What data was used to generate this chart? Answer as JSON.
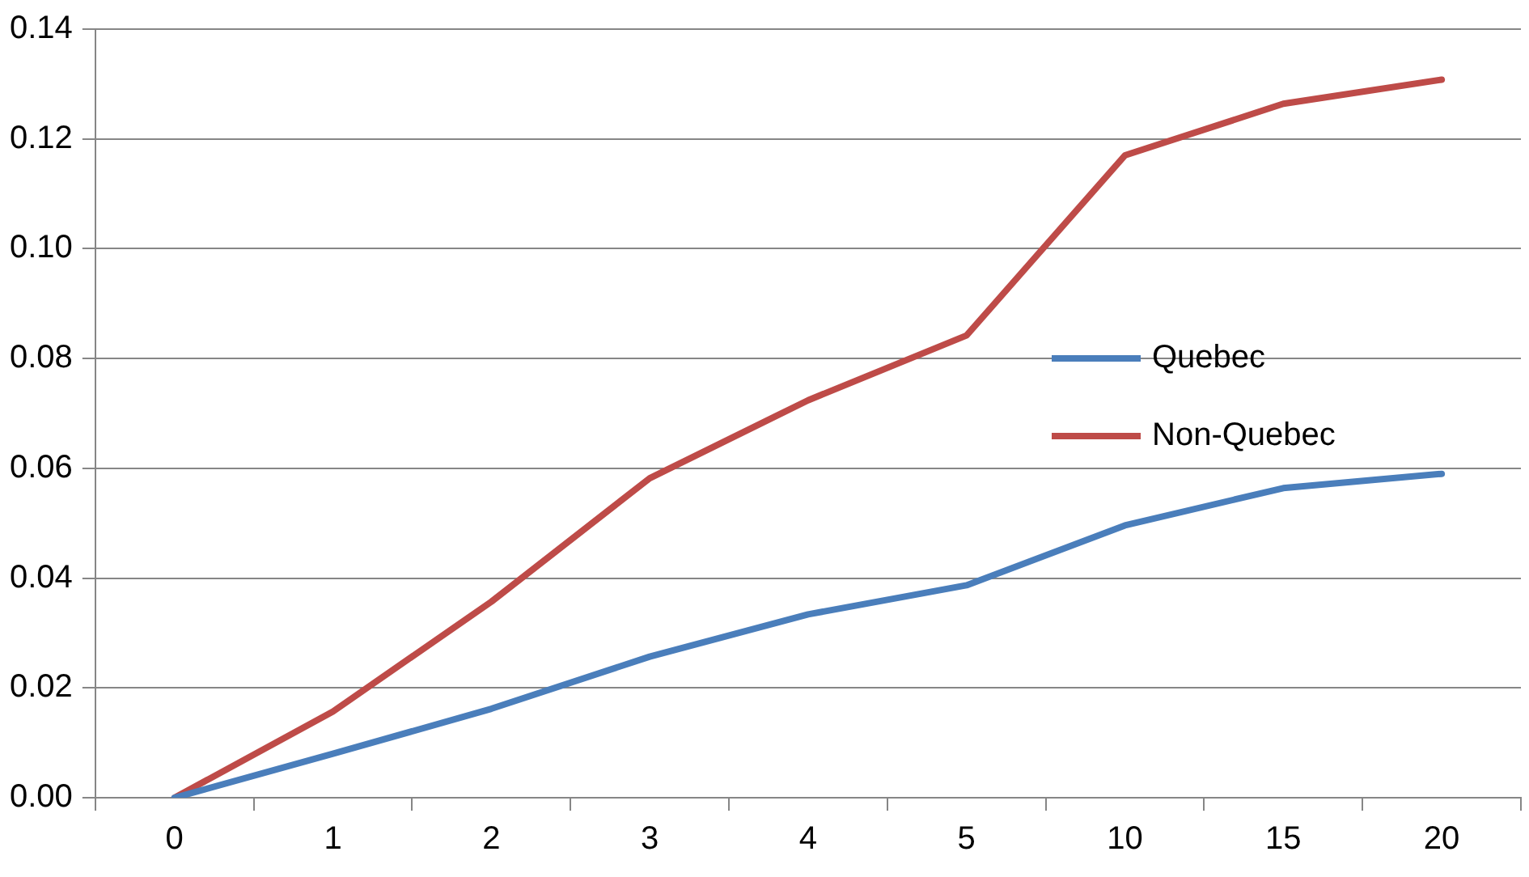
{
  "chart_data": {
    "type": "line",
    "categories": [
      "0",
      "1",
      "2",
      "3",
      "4",
      "5",
      "10",
      "15",
      "20"
    ],
    "series": [
      {
        "name": "Quebec",
        "color": "#4a7ebb",
        "values": [
          0,
          0.008,
          0.0162,
          0.0257,
          0.0334,
          0.0387,
          0.0496,
          0.0564,
          0.059
        ]
      },
      {
        "name": "Non-Quebec",
        "color": "#be4b48",
        "values": [
          0,
          0.0157,
          0.0357,
          0.0582,
          0.0724,
          0.0842,
          0.117,
          0.1264,
          0.1308
        ]
      }
    ],
    "ylim": [
      0,
      0.14
    ],
    "yticks": [
      {
        "value": 0,
        "label": "0.00"
      },
      {
        "value": 0.02,
        "label": "0.02"
      },
      {
        "value": 0.04,
        "label": "0.04"
      },
      {
        "value": 0.06,
        "label": "0.06"
      },
      {
        "value": 0.08,
        "label": "0.08"
      },
      {
        "value": 0.1,
        "label": "0.10"
      },
      {
        "value": 0.12,
        "label": "0.12"
      },
      {
        "value": 0.14,
        "label": "0.14"
      }
    ],
    "grid": "y",
    "legend": "right",
    "marker": "none",
    "line_style": "solid"
  }
}
